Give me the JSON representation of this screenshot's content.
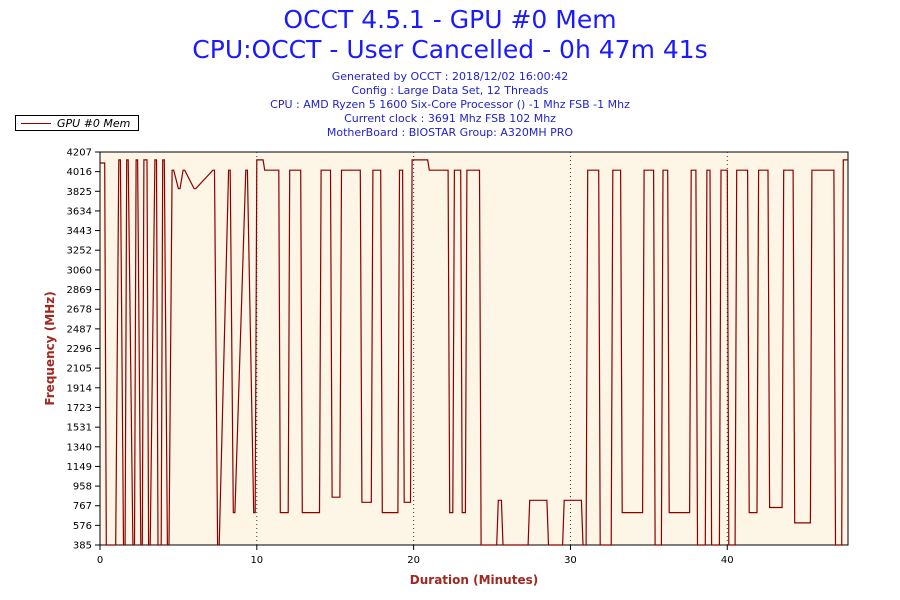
{
  "header": {
    "title_line1": "OCCT 4.5.1 - GPU #0 Mem",
    "title_line2": "CPU:OCCT - User Cancelled - 0h 47m 41s",
    "generated": "Generated by OCCT : 2018/12/02 16:00:42",
    "config": "Config : Large Data Set, 12 Threads",
    "cpu": "CPU : AMD Ryzen 5 1600 Six-Core Processor () -1 Mhz FSB -1 Mhz",
    "clock": "Current clock : 3691 Mhz FSB 102 Mhz",
    "motherboard": "MotherBoard : BIOSTAR Group: A320MH PRO"
  },
  "colors": {
    "title": "#1a1aff",
    "info": "#2222cc",
    "plot_background": "#fdf5e6",
    "series": "#8b0000",
    "axis_title": "#a0281e"
  },
  "chart_data": {
    "type": "line",
    "xlabel": "Duration (Minutes)",
    "ylabel": "Frequency (MHz)",
    "xlim": [
      0,
      47.7
    ],
    "ylim": [
      385,
      4207
    ],
    "x_ticks": [
      0,
      10,
      20,
      30,
      40
    ],
    "y_ticks": [
      385,
      576,
      767,
      958,
      1149,
      1340,
      1531,
      1723,
      1914,
      2105,
      2296,
      2487,
      2678,
      2869,
      3060,
      3252,
      3443,
      3634,
      3825,
      4016,
      4207
    ],
    "grid": "vertical dotted at x ticks",
    "legend": "top-left",
    "series": [
      {
        "name": "GPU #0 Mem",
        "color": "#8b0000",
        "x": [
          0.0,
          0.3,
          0.4,
          1.0,
          1.2,
          1.3,
          1.5,
          1.6,
          1.7,
          1.8,
          2.1,
          2.2,
          2.3,
          2.4,
          2.6,
          2.7,
          2.8,
          3.0,
          3.1,
          3.2,
          3.5,
          3.6,
          3.7,
          3.9,
          4.0,
          4.1,
          4.3,
          4.4,
          4.6,
          4.7,
          5.0,
          5.1,
          5.3,
          5.4,
          6.0,
          6.1,
          7.2,
          7.3,
          7.5,
          7.6,
          8.2,
          8.3,
          8.5,
          8.6,
          9.3,
          9.4,
          9.8,
          9.9,
          10.0,
          10.4,
          10.5,
          11.4,
          11.5,
          12.0,
          12.1,
          12.8,
          12.9,
          14.0,
          14.1,
          14.7,
          14.8,
          15.3,
          15.4,
          16.6,
          16.7,
          17.3,
          17.4,
          17.9,
          18.0,
          19.0,
          19.1,
          19.3,
          19.4,
          19.8,
          19.9,
          20.9,
          21.0,
          22.2,
          22.3,
          22.5,
          22.6,
          23.0,
          23.1,
          23.3,
          23.4,
          24.2,
          24.3,
          25.3,
          25.4,
          25.6,
          25.7,
          27.3,
          27.4,
          28.5,
          28.6,
          29.5,
          29.6,
          30.7,
          30.8,
          31.0,
          31.1,
          31.8,
          31.9,
          32.6,
          32.7,
          33.2,
          33.3,
          34.6,
          34.7,
          35.3,
          35.4,
          35.8,
          35.9,
          36.2,
          36.3,
          37.6,
          37.7,
          38.0,
          38.1,
          38.6,
          38.7,
          38.9,
          39.0,
          39.5,
          39.6,
          40.0,
          40.1,
          40.5,
          40.6,
          41.3,
          41.4,
          41.9,
          42.0,
          42.6,
          42.7,
          43.5,
          43.6,
          44.2,
          44.3,
          45.3,
          45.4,
          46.0,
          46.1,
          46.8,
          46.9,
          47.3,
          47.4,
          47.7
        ],
        "y": [
          4100,
          4100,
          385,
          385,
          4130,
          4130,
          385,
          385,
          4130,
          4130,
          385,
          385,
          4130,
          4130,
          385,
          385,
          4130,
          4130,
          385,
          385,
          4130,
          4130,
          385,
          385,
          4130,
          4130,
          385,
          385,
          4030,
          4030,
          3850,
          3850,
          4030,
          4030,
          3850,
          3850,
          4030,
          4030,
          385,
          385,
          4030,
          4030,
          700,
          700,
          4030,
          4030,
          700,
          700,
          4130,
          4130,
          4030,
          4030,
          700,
          700,
          4030,
          4030,
          700,
          700,
          4030,
          4030,
          850,
          850,
          4030,
          4030,
          800,
          800,
          4030,
          4030,
          700,
          700,
          4030,
          4030,
          800,
          800,
          4130,
          4130,
          4030,
          4030,
          700,
          700,
          4030,
          4030,
          700,
          700,
          4030,
          4030,
          385,
          385,
          820,
          820,
          385,
          385,
          820,
          820,
          385,
          385,
          820,
          820,
          385,
          385,
          4030,
          4030,
          385,
          385,
          4030,
          4030,
          700,
          700,
          4030,
          4030,
          385,
          385,
          4030,
          4030,
          700,
          700,
          4030,
          4030,
          385,
          385,
          4030,
          4030,
          385,
          385,
          4030,
          4030,
          385,
          385,
          4030,
          4030,
          700,
          700,
          4030,
          4030,
          750,
          750,
          4030,
          4030,
          600,
          600,
          4030,
          4030,
          4030,
          4030,
          385,
          385,
          4130,
          4130
        ]
      }
    ]
  }
}
